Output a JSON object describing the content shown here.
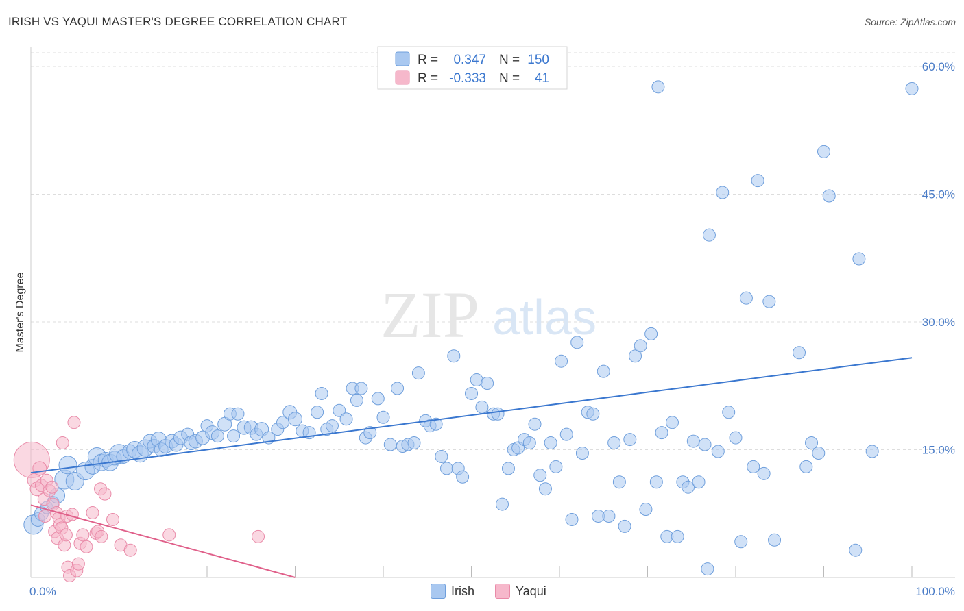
{
  "title": "IRISH VS YAQUI MASTER'S DEGREE CORRELATION CHART",
  "source": "Source: ZipAtlas.com",
  "watermark": {
    "zip": "ZIP",
    "atlas": "atlas"
  },
  "colors": {
    "irish_fill": "#a9c8f0",
    "irish_stroke": "#6f9fdc",
    "irish_line": "#3a77cf",
    "yaqui_fill": "#f6b8cb",
    "yaqui_stroke": "#e98aa8",
    "yaqui_line": "#e0608a",
    "tick_text": "#4a7cc7",
    "grid": "#dddddd"
  },
  "legend": {
    "rows": [
      {
        "r_label": "R =",
        "r_value": "0.347",
        "n_label": "N =",
        "n_value": "150",
        "series": "Irish"
      },
      {
        "r_label": "R =",
        "r_value": "-0.333",
        "n_label": "N =",
        "n_value": "41",
        "series": "Yaqui"
      }
    ]
  },
  "chart_data": {
    "type": "scatter",
    "title": "IRISH VS YAQUI MASTER'S DEGREE CORRELATION CHART",
    "xlabel": "",
    "ylabel": "Master's Degree",
    "xlim": [
      0,
      100
    ],
    "ylim": [
      0,
      60
    ],
    "x_tick_labels": [
      "0.0%",
      "100.0%"
    ],
    "y_ticks": [
      15,
      30,
      45,
      60
    ],
    "y_tick_labels": [
      "15.0%",
      "30.0%",
      "45.0%",
      "60.0%"
    ],
    "grid": true,
    "legend_position": "top-center",
    "series": [
      {
        "name": "Irish",
        "trend": {
          "x": [
            0,
            100
          ],
          "y": [
            12.3,
            25.8
          ]
        },
        "points": [
          [
            0.3,
            6.2,
            14
          ],
          [
            0.8,
            6.8,
            10
          ],
          [
            1.2,
            7.5,
            10
          ],
          [
            1.8,
            8.2,
            9
          ],
          [
            2.5,
            8.8,
            9
          ],
          [
            3.0,
            9.6,
            11
          ],
          [
            3.8,
            11.5,
            14
          ],
          [
            4.2,
            13.2,
            13
          ],
          [
            5.0,
            11.3,
            13
          ],
          [
            6.2,
            12.5,
            13
          ],
          [
            7.0,
            13.0,
            11
          ],
          [
            7.5,
            14.2,
            13
          ],
          [
            8.0,
            13.5,
            12
          ],
          [
            8.5,
            13.8,
            11
          ],
          [
            9.0,
            13.5,
            12
          ],
          [
            9.5,
            14.0,
            10
          ],
          [
            10.0,
            14.5,
            14
          ],
          [
            10.5,
            14.2,
            10
          ],
          [
            11.2,
            14.8,
            10
          ],
          [
            11.8,
            15.0,
            12
          ],
          [
            12.4,
            14.5,
            12
          ],
          [
            13.0,
            15.2,
            12
          ],
          [
            13.5,
            16.0,
            10
          ],
          [
            14.0,
            15.4,
            10
          ],
          [
            14.5,
            16.2,
            11
          ],
          [
            14.8,
            15.0,
            10
          ],
          [
            15.3,
            15.4,
            10
          ],
          [
            16.0,
            16.0,
            10
          ],
          [
            16.5,
            15.6,
            10
          ],
          [
            17.0,
            16.4,
            10
          ],
          [
            17.8,
            16.8,
            9
          ],
          [
            18.2,
            15.8,
            10
          ],
          [
            18.7,
            16.0,
            10
          ],
          [
            19.5,
            16.4,
            10
          ],
          [
            20.0,
            17.8,
            9
          ],
          [
            20.6,
            17.0,
            10
          ],
          [
            21.2,
            16.6,
            9
          ],
          [
            22.0,
            18.0,
            10
          ],
          [
            22.6,
            19.2,
            9
          ],
          [
            23.0,
            16.6,
            9
          ],
          [
            23.5,
            19.2,
            9
          ],
          [
            24.2,
            17.6,
            10
          ],
          [
            25.0,
            17.6,
            10
          ],
          [
            25.6,
            16.8,
            9
          ],
          [
            26.2,
            17.4,
            10
          ],
          [
            27.0,
            16.4,
            9
          ],
          [
            28.0,
            17.4,
            9
          ],
          [
            28.6,
            18.2,
            9
          ],
          [
            29.4,
            19.4,
            10
          ],
          [
            30.0,
            18.6,
            10
          ],
          [
            30.8,
            17.2,
            9
          ],
          [
            31.6,
            17.0,
            9
          ],
          [
            32.5,
            19.4,
            9
          ],
          [
            33.0,
            21.6,
            9
          ],
          [
            33.6,
            17.4,
            9
          ],
          [
            34.2,
            17.8,
            9
          ],
          [
            35.0,
            19.6,
            9
          ],
          [
            35.8,
            18.6,
            9
          ],
          [
            36.5,
            22.2,
            9
          ],
          [
            37.0,
            20.8,
            9
          ],
          [
            37.5,
            22.2,
            9
          ],
          [
            38.0,
            16.4,
            9
          ],
          [
            38.5,
            17.0,
            9
          ],
          [
            39.4,
            21.0,
            9
          ],
          [
            40.0,
            18.8,
            9
          ],
          [
            40.8,
            15.6,
            9
          ],
          [
            41.6,
            22.2,
            9
          ],
          [
            42.2,
            15.4,
            9
          ],
          [
            42.8,
            15.6,
            9
          ],
          [
            43.5,
            15.8,
            9
          ],
          [
            44.0,
            24.0,
            9
          ],
          [
            44.8,
            18.4,
            9
          ],
          [
            45.3,
            17.8,
            9
          ],
          [
            46.0,
            18.0,
            9
          ],
          [
            46.6,
            14.2,
            9
          ],
          [
            47.2,
            12.8,
            9
          ],
          [
            48.0,
            26.0,
            9
          ],
          [
            48.5,
            12.8,
            9
          ],
          [
            49.0,
            11.8,
            9
          ],
          [
            50.0,
            21.6,
            9
          ],
          [
            50.6,
            23.2,
            9
          ],
          [
            51.2,
            20.0,
            9
          ],
          [
            51.8,
            22.8,
            9
          ],
          [
            52.5,
            19.2,
            9
          ],
          [
            53.0,
            19.2,
            9
          ],
          [
            53.5,
            8.6,
            9
          ],
          [
            54.2,
            12.8,
            9
          ],
          [
            54.8,
            15.0,
            9
          ],
          [
            55.3,
            15.2,
            9
          ],
          [
            56.0,
            16.2,
            9
          ],
          [
            56.6,
            15.8,
            9
          ],
          [
            57.2,
            18.0,
            9
          ],
          [
            57.8,
            12.0,
            9
          ],
          [
            58.4,
            10.4,
            9
          ],
          [
            59.0,
            15.8,
            9
          ],
          [
            59.6,
            13.0,
            9
          ],
          [
            60.2,
            25.4,
            9
          ],
          [
            60.8,
            16.8,
            9
          ],
          [
            61.4,
            6.8,
            9
          ],
          [
            62.0,
            27.6,
            9
          ],
          [
            62.6,
            14.6,
            9
          ],
          [
            63.2,
            19.4,
            9
          ],
          [
            63.8,
            19.2,
            9
          ],
          [
            64.4,
            7.2,
            9
          ],
          [
            65.0,
            24.2,
            9
          ],
          [
            65.6,
            7.2,
            9
          ],
          [
            66.2,
            15.8,
            9
          ],
          [
            66.8,
            11.2,
            9
          ],
          [
            67.4,
            6.0,
            9
          ],
          [
            68.0,
            16.2,
            9
          ],
          [
            68.6,
            26.0,
            9
          ],
          [
            69.2,
            27.2,
            9
          ],
          [
            69.8,
            8.0,
            9
          ],
          [
            70.4,
            28.6,
            9
          ],
          [
            71.0,
            11.2,
            9
          ],
          [
            71.6,
            17.0,
            9
          ],
          [
            72.2,
            4.8,
            9
          ],
          [
            72.8,
            18.2,
            9
          ],
          [
            73.4,
            4.8,
            9
          ],
          [
            74.0,
            11.2,
            9
          ],
          [
            74.6,
            10.6,
            9
          ],
          [
            75.2,
            16.0,
            9
          ],
          [
            75.8,
            11.2,
            9
          ],
          [
            76.5,
            15.6,
            9
          ],
          [
            77.0,
            40.2,
            9
          ],
          [
            78.0,
            14.8,
            9
          ],
          [
            78.5,
            45.2,
            9
          ],
          [
            79.2,
            19.4,
            9
          ],
          [
            80.0,
            16.4,
            9
          ],
          [
            80.6,
            4.2,
            9
          ],
          [
            81.2,
            32.8,
            9
          ],
          [
            82.0,
            13.0,
            9
          ],
          [
            82.5,
            46.6,
            9
          ],
          [
            83.2,
            12.2,
            9
          ],
          [
            83.8,
            32.4,
            9
          ],
          [
            84.4,
            4.4,
            9
          ],
          [
            71.2,
            57.6,
            9
          ],
          [
            76.8,
            1.0,
            9
          ],
          [
            87.2,
            26.4,
            9
          ],
          [
            88.0,
            13.0,
            9
          ],
          [
            88.6,
            15.8,
            9
          ],
          [
            89.4,
            14.6,
            9
          ],
          [
            90.0,
            50.0,
            9
          ],
          [
            90.6,
            44.8,
            9
          ],
          [
            94.0,
            37.4,
            9
          ],
          [
            93.6,
            3.2,
            9
          ],
          [
            95.5,
            14.8,
            9
          ],
          [
            100.0,
            57.4,
            9
          ]
        ]
      },
      {
        "name": "Yaqui",
        "trend": {
          "x": [
            0,
            30
          ],
          "y": [
            8.5,
            0
          ]
        },
        "points": [
          [
            0.1,
            13.8,
            26
          ],
          [
            0.4,
            11.4,
            10
          ],
          [
            0.7,
            10.4,
            10
          ],
          [
            1.0,
            12.8,
            10
          ],
          [
            1.2,
            10.8,
            9
          ],
          [
            1.5,
            9.2,
            9
          ],
          [
            1.6,
            7.2,
            9
          ],
          [
            1.8,
            11.4,
            9
          ],
          [
            2.1,
            10.2,
            9
          ],
          [
            2.4,
            10.6,
            9
          ],
          [
            2.5,
            8.6,
            9
          ],
          [
            2.7,
            5.4,
            9
          ],
          [
            2.9,
            7.6,
            9
          ],
          [
            3.0,
            4.6,
            9
          ],
          [
            3.2,
            7.0,
            9
          ],
          [
            3.3,
            6.2,
            9
          ],
          [
            3.5,
            5.8,
            9
          ],
          [
            3.6,
            15.8,
            9
          ],
          [
            3.8,
            3.8,
            9
          ],
          [
            4.0,
            5.0,
            9
          ],
          [
            4.1,
            7.2,
            9
          ],
          [
            4.2,
            1.2,
            9
          ],
          [
            4.4,
            0.2,
            9
          ],
          [
            4.7,
            7.4,
            9
          ],
          [
            4.9,
            18.2,
            9
          ],
          [
            5.2,
            0.8,
            9
          ],
          [
            5.4,
            1.6,
            9
          ],
          [
            5.6,
            4.0,
            9
          ],
          [
            5.9,
            5.0,
            9
          ],
          [
            6.3,
            3.6,
            9
          ],
          [
            7.0,
            7.6,
            9
          ],
          [
            7.4,
            5.2,
            9
          ],
          [
            7.6,
            5.4,
            9
          ],
          [
            7.9,
            10.4,
            9
          ],
          [
            8.0,
            4.8,
            9
          ],
          [
            8.4,
            9.8,
            9
          ],
          [
            9.3,
            6.8,
            9
          ],
          [
            10.2,
            3.8,
            9
          ],
          [
            11.3,
            3.2,
            9
          ],
          [
            15.7,
            5.0,
            9
          ],
          [
            25.8,
            4.8,
            9
          ]
        ]
      }
    ]
  },
  "bottom_legend": [
    {
      "label": "Irish",
      "color": "#a9c8f0"
    },
    {
      "label": "Yaqui",
      "color": "#f6b8cb"
    }
  ]
}
